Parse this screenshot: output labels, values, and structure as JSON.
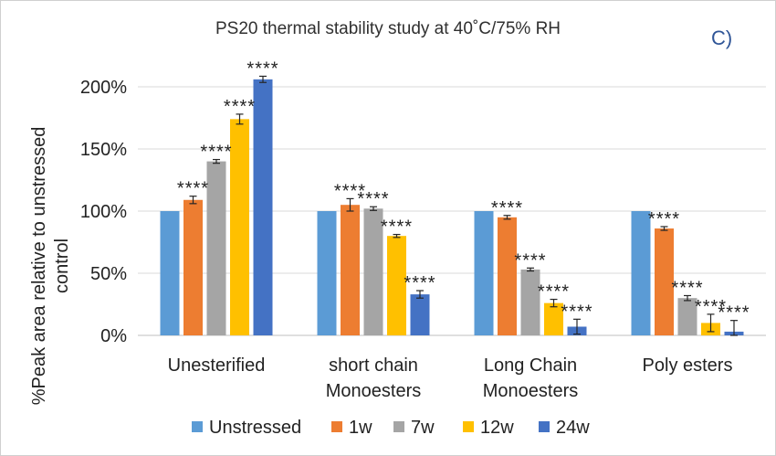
{
  "chart_data": {
    "type": "bar",
    "title": "PS20 thermal stability study at 40˚C/75% RH",
    "panel_label": "C)",
    "ylabel_lines": [
      "%Peak area relative to unstressed",
      "control"
    ],
    "xlabel": "",
    "ylim": [
      0,
      2.0
    ],
    "yticks": [
      0,
      0.5,
      1.0,
      1.5,
      2.0
    ],
    "ytick_labels": [
      "0%",
      "50%",
      "100%",
      "150%",
      "200%"
    ],
    "grid": true,
    "legend_position": "bottom",
    "categories": [
      [
        "Unesterified"
      ],
      [
        "short chain",
        "Monoesters"
      ],
      [
        "Long Chain",
        "Monoesters"
      ],
      [
        "Poly esters"
      ]
    ],
    "series": [
      {
        "name": "Unstressed",
        "color": "#5b9bd5",
        "values": [
          1.0,
          1.0,
          1.0,
          1.0
        ],
        "errors": [
          0,
          0,
          0,
          0
        ],
        "annotations": [
          "",
          "",
          "",
          ""
        ]
      },
      {
        "name": "1w",
        "color": "#ed7d31",
        "values": [
          1.09,
          1.05,
          0.95,
          0.86
        ],
        "errors": [
          0.03,
          0.05,
          0.015,
          0.015
        ],
        "annotations": [
          "****",
          "****",
          "****",
          "****"
        ]
      },
      {
        "name": "7w",
        "color": "#a5a5a5",
        "values": [
          1.4,
          1.02,
          0.53,
          0.3
        ],
        "errors": [
          0.015,
          0.015,
          0.012,
          0.02
        ],
        "annotations": [
          "****",
          "****",
          "****",
          "****"
        ]
      },
      {
        "name": "12w",
        "color": "#ffc000",
        "values": [
          1.74,
          0.8,
          0.26,
          0.1
        ],
        "errors": [
          0.04,
          0.012,
          0.03,
          0.07
        ],
        "annotations": [
          "****",
          "****",
          "****",
          "****"
        ]
      },
      {
        "name": "24w",
        "color": "#4472c4",
        "values": [
          2.06,
          0.33,
          0.07,
          0.03
        ],
        "errors": [
          0.025,
          0.03,
          0.06,
          0.09
        ],
        "annotations": [
          "****",
          "****",
          "****",
          "****"
        ]
      }
    ]
  }
}
